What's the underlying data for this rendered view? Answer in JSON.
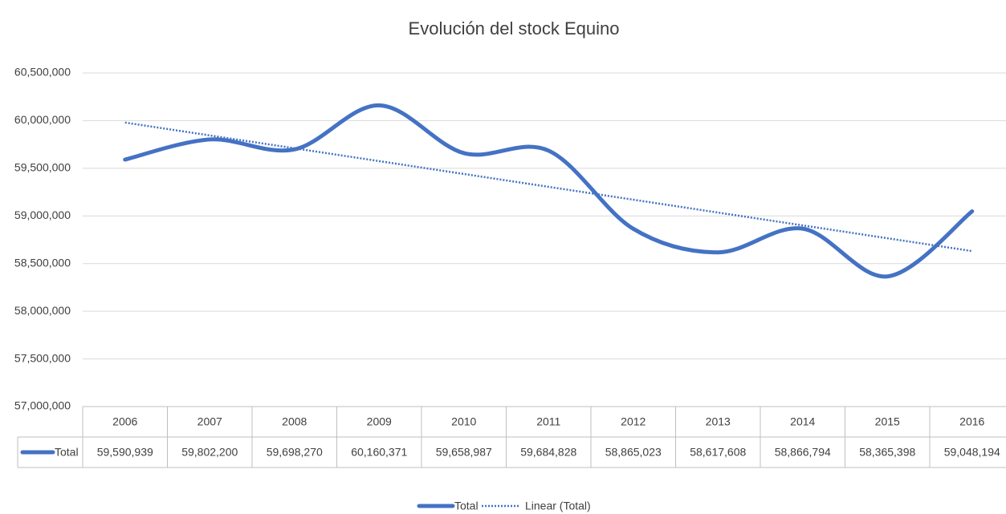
{
  "chart_data": {
    "type": "line",
    "title": "Evolución del stock Equino",
    "categories": [
      "2006",
      "2007",
      "2008",
      "2009",
      "2010",
      "2011",
      "2012",
      "2013",
      "2014",
      "2015",
      "2016"
    ],
    "series": [
      {
        "name": "Total",
        "color": "#4472c4",
        "values": [
          59590939,
          59802200,
          59698270,
          60160371,
          59658987,
          59684828,
          58865023,
          58617608,
          58866794,
          58365398,
          59048194
        ],
        "value_labels": [
          "59,590,939",
          "59,802,200",
          "59,698,270",
          "60,160,371",
          "59,658,987",
          "59,684,828",
          "58,865,023",
          "58,617,608",
          "58,866,794",
          "58,365,398",
          "59,048,194"
        ]
      }
    ],
    "trendline": {
      "name": "Linear (Total)",
      "type": "linear",
      "color": "#4472c4"
    },
    "ylim": [
      57000000,
      60500000
    ],
    "yticks": [
      {
        "value": 57000000,
        "label": "57,000,000"
      },
      {
        "value": 57500000,
        "label": "57,500,000"
      },
      {
        "value": 58000000,
        "label": "58,000,000"
      },
      {
        "value": 58500000,
        "label": "58,500,000"
      },
      {
        "value": 59000000,
        "label": "59,000,000"
      },
      {
        "value": 59500000,
        "label": "59,500,000"
      },
      {
        "value": 60000000,
        "label": "60,000,000"
      },
      {
        "value": 60500000,
        "label": "60,500,000"
      }
    ],
    "grid": true,
    "legend": "bottom",
    "data_table": true
  }
}
